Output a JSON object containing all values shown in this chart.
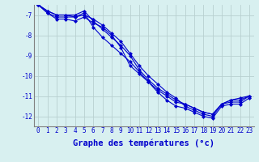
{
  "xlabel": "Graphe des températures (°c)",
  "x": [
    0,
    1,
    2,
    3,
    4,
    5,
    6,
    7,
    8,
    9,
    10,
    11,
    12,
    13,
    14,
    15,
    16,
    17,
    18,
    19,
    20,
    21,
    22,
    23
  ],
  "series": [
    [
      -6.5,
      -6.9,
      -7.2,
      -7.2,
      -7.3,
      -7.1,
      -7.4,
      -7.6,
      -8.0,
      -8.6,
      -9.5,
      -9.9,
      -10.3,
      -10.8,
      -11.2,
      -11.5,
      -11.6,
      -11.8,
      -12.0,
      -12.1,
      -11.5,
      -11.4,
      -11.4,
      -11.1
    ],
    [
      -6.5,
      -6.9,
      -7.1,
      -7.1,
      -7.1,
      -7.0,
      -7.2,
      -7.5,
      -7.9,
      -8.3,
      -8.9,
      -9.5,
      -10.0,
      -10.4,
      -10.8,
      -11.1,
      -11.5,
      -11.7,
      -11.9,
      -12.0,
      -11.4,
      -11.3,
      -11.3,
      -11.0
    ],
    [
      -6.5,
      -6.8,
      -7.0,
      -7.0,
      -7.1,
      -6.9,
      -7.6,
      -8.1,
      -8.5,
      -8.9,
      -9.3,
      -9.8,
      -10.3,
      -10.7,
      -11.0,
      -11.3,
      -11.4,
      -11.6,
      -11.8,
      -11.9,
      -11.4,
      -11.2,
      -11.2,
      -11.0
    ],
    [
      -6.5,
      -6.8,
      -7.0,
      -7.0,
      -7.0,
      -6.8,
      -7.3,
      -7.7,
      -8.1,
      -8.5,
      -9.0,
      -9.7,
      -10.2,
      -10.6,
      -10.9,
      -11.2,
      -11.4,
      -11.6,
      -11.8,
      -11.9,
      -11.4,
      -11.2,
      -11.1,
      -11.0
    ]
  ],
  "line_color": "#0000cd",
  "marker": "D",
  "markersize": 2.0,
  "linewidth": 0.8,
  "bg_color": "#d8f0f0",
  "grid_color": "#b8d0d0",
  "ylim": [
    -12.5,
    -6.5
  ],
  "xlim": [
    -0.5,
    23.5
  ],
  "yticks": [
    -12,
    -11,
    -10,
    -9,
    -8,
    -7
  ],
  "xticks": [
    0,
    1,
    2,
    3,
    4,
    5,
    6,
    7,
    8,
    9,
    10,
    11,
    12,
    13,
    14,
    15,
    16,
    17,
    18,
    19,
    20,
    21,
    22,
    23
  ],
  "tick_fontsize": 5.5,
  "xlabel_fontsize": 7.5,
  "spine_color": "#808080"
}
